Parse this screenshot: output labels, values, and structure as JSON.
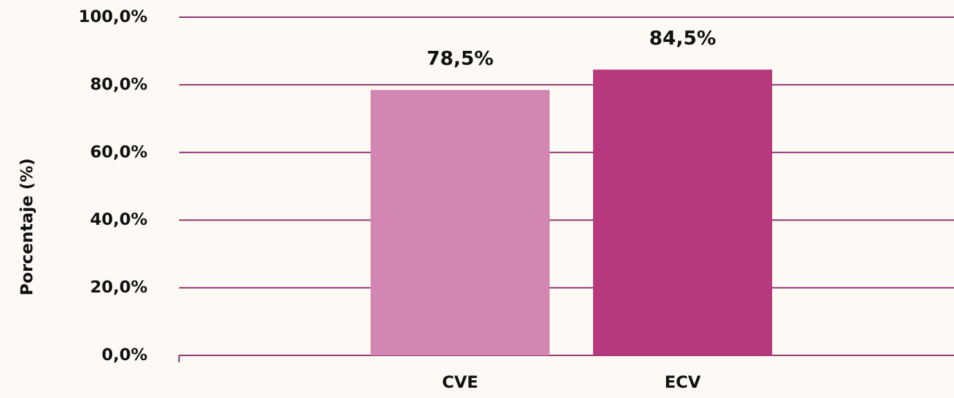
{
  "chart_data": {
    "type": "bar",
    "categories": [
      "CVE",
      "ECV"
    ],
    "values": [
      78.5,
      84.5
    ],
    "value_labels": [
      "78,5%",
      "84,5%"
    ],
    "colors": [
      "#d486b3",
      "#b8387e"
    ],
    "ylabel": "Porcentaje (%)",
    "ylim": [
      0,
      100
    ],
    "yticks": [
      {
        "value": 0,
        "label": "0,0%"
      },
      {
        "value": 20,
        "label": "20,0%"
      },
      {
        "value": 40,
        "label": "40,0%"
      },
      {
        "value": 60,
        "label": "60,0%"
      },
      {
        "value": 80,
        "label": "80,0%"
      },
      {
        "value": 100,
        "label": "100,0%"
      }
    ],
    "grid": true
  }
}
